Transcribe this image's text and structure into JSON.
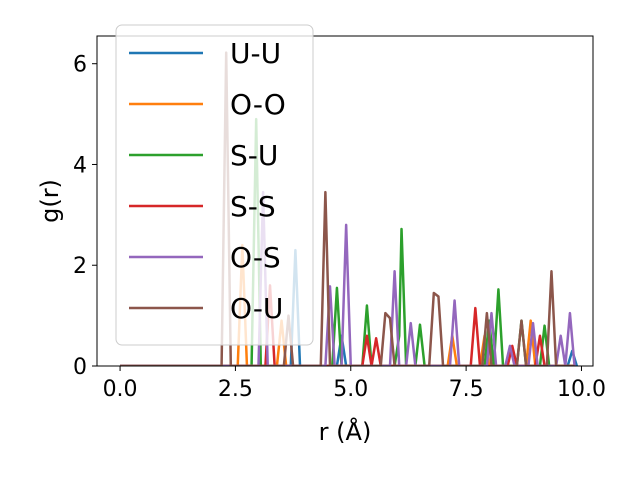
{
  "chart_data": {
    "type": "line",
    "xlabel": "r (Å)",
    "ylabel": "g(r)",
    "xlim": [
      -0.5,
      10.25
    ],
    "ylim": [
      0,
      6.55
    ],
    "xticks": [
      0.0,
      2.5,
      5.0,
      7.5,
      10.0
    ],
    "xtick_labels": [
      "0.0",
      "2.5",
      "5.0",
      "7.5",
      "10.0"
    ],
    "yticks": [
      0,
      2,
      4,
      6
    ],
    "ytick_labels": [
      "0",
      "2",
      "4",
      "6"
    ],
    "grid": false,
    "legend_position": "upper-left",
    "series": [
      {
        "name": "U-U",
        "color": "#1f77b4",
        "points": [
          [
            0,
            0
          ],
          [
            3.7,
            0
          ],
          [
            3.8,
            2.3
          ],
          [
            3.9,
            0
          ],
          [
            4.7,
            0
          ],
          [
            4.8,
            0.6
          ],
          [
            4.9,
            0
          ],
          [
            9.7,
            0
          ],
          [
            9.8,
            0.3
          ],
          [
            9.9,
            0
          ]
        ]
      },
      {
        "name": "O-O",
        "color": "#ff7f0e",
        "points": [
          [
            0,
            0
          ],
          [
            2.55,
            0
          ],
          [
            2.65,
            2.4
          ],
          [
            2.75,
            0
          ],
          [
            3.4,
            0
          ],
          [
            3.5,
            0.9
          ],
          [
            3.6,
            0
          ],
          [
            7.1,
            0
          ],
          [
            7.2,
            0.6
          ],
          [
            7.3,
            0
          ],
          [
            7.8,
            0
          ],
          [
            7.9,
            0.6
          ],
          [
            8.0,
            0
          ],
          [
            8.8,
            0
          ],
          [
            8.9,
            0.9
          ],
          [
            9.0,
            0
          ],
          [
            9.85,
            0
          ]
        ]
      },
      {
        "name": "S-U",
        "color": "#2ca02c",
        "points": [
          [
            0,
            0
          ],
          [
            2.85,
            0
          ],
          [
            2.95,
            4.9
          ],
          [
            3.05,
            0
          ],
          [
            4.6,
            0
          ],
          [
            4.7,
            1.55
          ],
          [
            4.8,
            0
          ],
          [
            5.25,
            0
          ],
          [
            5.35,
            1.2
          ],
          [
            5.45,
            0
          ],
          [
            5.95,
            0
          ],
          [
            6.05,
            0.6
          ],
          [
            6.1,
            2.72
          ],
          [
            6.2,
            0
          ],
          [
            6.4,
            0
          ],
          [
            6.5,
            0.82
          ],
          [
            6.6,
            0
          ],
          [
            7.9,
            0
          ],
          [
            8.0,
            0.9
          ],
          [
            8.1,
            0
          ],
          [
            8.2,
            1.52
          ],
          [
            8.3,
            0
          ],
          [
            8.6,
            0
          ],
          [
            8.7,
            0.9
          ],
          [
            8.8,
            0
          ],
          [
            9.1,
            0
          ],
          [
            9.2,
            0.8
          ],
          [
            9.3,
            0
          ],
          [
            9.85,
            0
          ]
        ]
      },
      {
        "name": "S-S",
        "color": "#d62728",
        "points": [
          [
            0,
            0
          ],
          [
            3.15,
            0
          ],
          [
            3.25,
            1.6
          ],
          [
            3.35,
            0
          ],
          [
            5.25,
            0
          ],
          [
            5.35,
            0.6
          ],
          [
            5.45,
            0
          ],
          [
            5.55,
            0.55
          ],
          [
            5.65,
            0
          ],
          [
            7.6,
            0
          ],
          [
            7.7,
            1.15
          ],
          [
            7.8,
            0
          ],
          [
            8.4,
            0
          ],
          [
            8.5,
            0.4
          ],
          [
            8.6,
            0
          ],
          [
            9.0,
            0
          ],
          [
            9.1,
            0.6
          ],
          [
            9.2,
            0
          ],
          [
            9.85,
            0
          ]
        ]
      },
      {
        "name": "O-S",
        "color": "#9467bd",
        "points": [
          [
            0,
            0
          ],
          [
            3.0,
            0
          ],
          [
            3.1,
            3.45
          ],
          [
            3.2,
            0
          ],
          [
            4.45,
            0
          ],
          [
            4.55,
            1.58
          ],
          [
            4.65,
            0
          ],
          [
            4.8,
            0
          ],
          [
            4.9,
            2.8
          ],
          [
            5.0,
            0
          ],
          [
            5.85,
            0
          ],
          [
            5.95,
            1.88
          ],
          [
            6.05,
            0
          ],
          [
            6.2,
            0
          ],
          [
            6.3,
            0.85
          ],
          [
            6.4,
            0
          ],
          [
            7.15,
            0
          ],
          [
            7.25,
            1.3
          ],
          [
            7.35,
            0
          ],
          [
            7.95,
            0
          ],
          [
            8.05,
            1.05
          ],
          [
            8.15,
            0
          ],
          [
            8.35,
            0
          ],
          [
            8.45,
            0.4
          ],
          [
            8.55,
            0
          ],
          [
            8.85,
            0
          ],
          [
            8.95,
            0.85
          ],
          [
            9.05,
            0
          ],
          [
            9.45,
            0
          ],
          [
            9.55,
            0.6
          ],
          [
            9.65,
            0
          ],
          [
            9.75,
            1.05
          ],
          [
            9.85,
            0
          ]
        ]
      },
      {
        "name": "O-U",
        "color": "#8c564b",
        "points": [
          [
            0,
            0
          ],
          [
            2.2,
            0
          ],
          [
            2.3,
            6.22
          ],
          [
            2.4,
            0
          ],
          [
            3.55,
            0
          ],
          [
            3.65,
            1.0
          ],
          [
            3.75,
            0
          ],
          [
            4.35,
            0
          ],
          [
            4.45,
            3.45
          ],
          [
            4.55,
            0
          ],
          [
            5.65,
            0
          ],
          [
            5.75,
            1.05
          ],
          [
            5.85,
            0.95
          ],
          [
            5.95,
            0
          ],
          [
            6.7,
            0
          ],
          [
            6.8,
            1.45
          ],
          [
            6.9,
            1.38
          ],
          [
            7.0,
            0
          ],
          [
            7.85,
            0
          ],
          [
            7.95,
            1.05
          ],
          [
            8.05,
            0
          ],
          [
            8.6,
            0
          ],
          [
            8.7,
            0.9
          ],
          [
            8.8,
            0
          ],
          [
            9.25,
            0
          ],
          [
            9.35,
            1.88
          ],
          [
            9.45,
            0
          ],
          [
            9.85,
            0
          ]
        ]
      }
    ]
  }
}
